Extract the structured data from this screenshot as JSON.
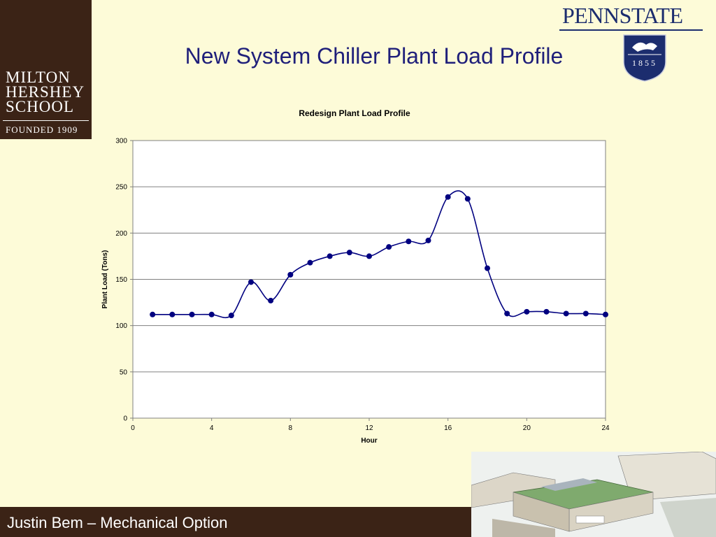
{
  "header": {
    "title": "New System Chiller Plant Load Profile",
    "mhs_logo": {
      "lines": [
        "MILTON",
        "HERSHEY",
        "SCHOOL"
      ],
      "founded": "FOUNDED 1909"
    },
    "psu_logo": {
      "wordmark": "PENNSTATE",
      "year": "1855"
    }
  },
  "footer": {
    "text": "Justin Bem – Mechanical Option"
  },
  "colors": {
    "background": "#fdfbd8",
    "brand_brown": "#3b2316",
    "series": "#000080",
    "title_blue": "#1f1f7a"
  },
  "chart_data": {
    "type": "line",
    "title": "Redesign Plant Load Profile",
    "xlabel": "Hour",
    "ylabel": "Plant Load (Tons)",
    "xlim": [
      0,
      24
    ],
    "ylim": [
      0,
      300
    ],
    "xticks": [
      0,
      4,
      8,
      12,
      16,
      20,
      24
    ],
    "yticks": [
      0,
      50,
      100,
      150,
      200,
      250,
      300
    ],
    "grid": "horizontal",
    "smooth": true,
    "series": [
      {
        "x": [
          1,
          2,
          3,
          4,
          5,
          6,
          7,
          8,
          9,
          10,
          11,
          12,
          13,
          14,
          15,
          16,
          17,
          18,
          19,
          20,
          21,
          22,
          23,
          24
        ],
        "y": [
          112,
          112,
          112,
          112,
          111,
          147,
          127,
          155,
          168,
          175,
          179,
          175,
          185,
          191,
          192,
          239,
          237,
          162,
          113,
          115,
          115,
          113,
          113,
          112
        ]
      }
    ]
  }
}
